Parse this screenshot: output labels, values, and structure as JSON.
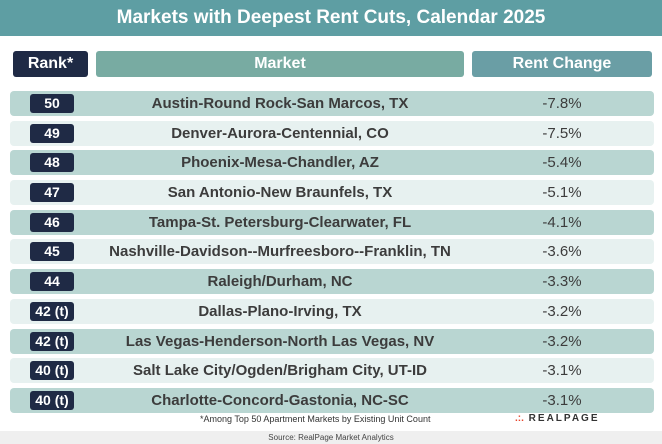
{
  "title": "Markets with Deepest Rent Cuts, Calendar 2025",
  "chart_data": {
    "type": "table",
    "title": "Markets with Deepest Rent Cuts, Calendar 2025",
    "columns": [
      "Rank*",
      "Market",
      "Rent Change"
    ],
    "rows": [
      {
        "rank": "50",
        "market": "Austin-Round Rock-San Marcos, TX",
        "change": "-7.8%"
      },
      {
        "rank": "49",
        "market": "Denver-Aurora-Centennial, CO",
        "change": "-7.5%"
      },
      {
        "rank": "48",
        "market": "Phoenix-Mesa-Chandler, AZ",
        "change": "-5.4%"
      },
      {
        "rank": "47",
        "market": "San Antonio-New Braunfels, TX",
        "change": "-5.1%"
      },
      {
        "rank": "46",
        "market": "Tampa-St. Petersburg-Clearwater, FL",
        "change": "-4.1%"
      },
      {
        "rank": "45",
        "market": "Nashville-Davidson--Murfreesboro--Franklin, TN",
        "change": "-3.6%"
      },
      {
        "rank": "44",
        "market": "Raleigh/Durham, NC",
        "change": "-3.3%"
      },
      {
        "rank": "42 (t)",
        "market": "Dallas-Plano-Irving, TX",
        "change": "-3.2%"
      },
      {
        "rank": "42 (t)",
        "market": "Las Vegas-Henderson-North Las Vegas, NV",
        "change": "-3.2%"
      },
      {
        "rank": "40 (t)",
        "market": "Salt Lake City/Ogden/Brigham City, UT-ID",
        "change": "-3.1%"
      },
      {
        "rank": "40 (t)",
        "market": "Charlotte-Concord-Gastonia, NC-SC",
        "change": "-3.1%"
      }
    ]
  },
  "footnote": "*Among Top 50 Apartment Markets by Existing Unit Count",
  "logo": "REALPAGE",
  "source": "Source: RealPage Market Analytics",
  "colors": {
    "title": "#5e9ea3",
    "rank_header": "#1f2a45",
    "market_header": "#78aba2",
    "change_header": "#6a9ea5"
  }
}
